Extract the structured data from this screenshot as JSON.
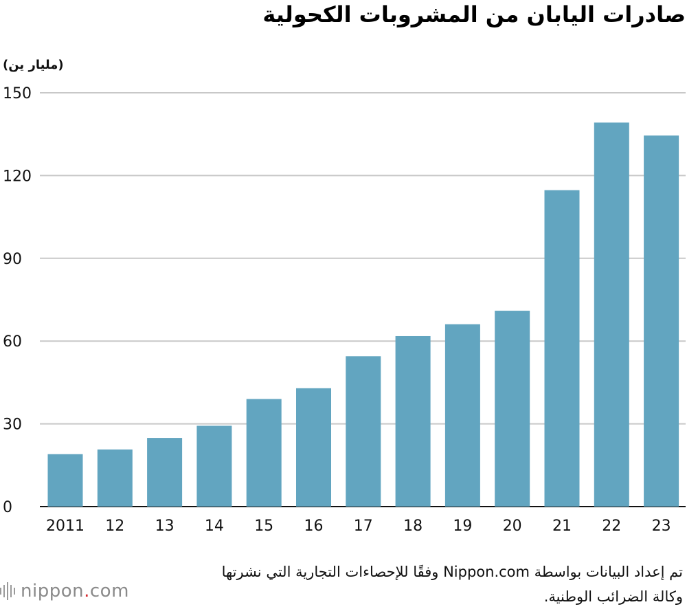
{
  "title": "صادرات اليابان من المشروبات الكحولية",
  "unit_label": "(مليار ين)",
  "source_text": "تم إعداد البيانات بواسطة Nippon.com وفقًا للإحصاءات التجارية التي نشرتها وكالة الضرائب الوطنية.",
  "logo": {
    "name": "nippon",
    "dot": ".",
    "suffix": "com"
  },
  "colors": {
    "bar": "#62a5c0",
    "grid": "#c8c8c8",
    "axis": "#111111"
  },
  "chart_data": {
    "type": "bar",
    "categories": [
      "2011",
      "12",
      "13",
      "14",
      "15",
      "16",
      "17",
      "18",
      "19",
      "20",
      "21",
      "22",
      "23"
    ],
    "values": [
      19,
      20.7,
      24.9,
      29.3,
      39,
      42.9,
      54.5,
      61.8,
      66.1,
      71,
      114.7,
      139.2,
      134.5
    ],
    "yticks": [
      0,
      30,
      60,
      90,
      120,
      150
    ],
    "ylim": [
      0,
      150
    ],
    "title": "صادرات اليابان من المشروبات الكحولية",
    "ylabel": "(مليار ين)",
    "xlabel": "",
    "grid": true,
    "legend": "none"
  }
}
